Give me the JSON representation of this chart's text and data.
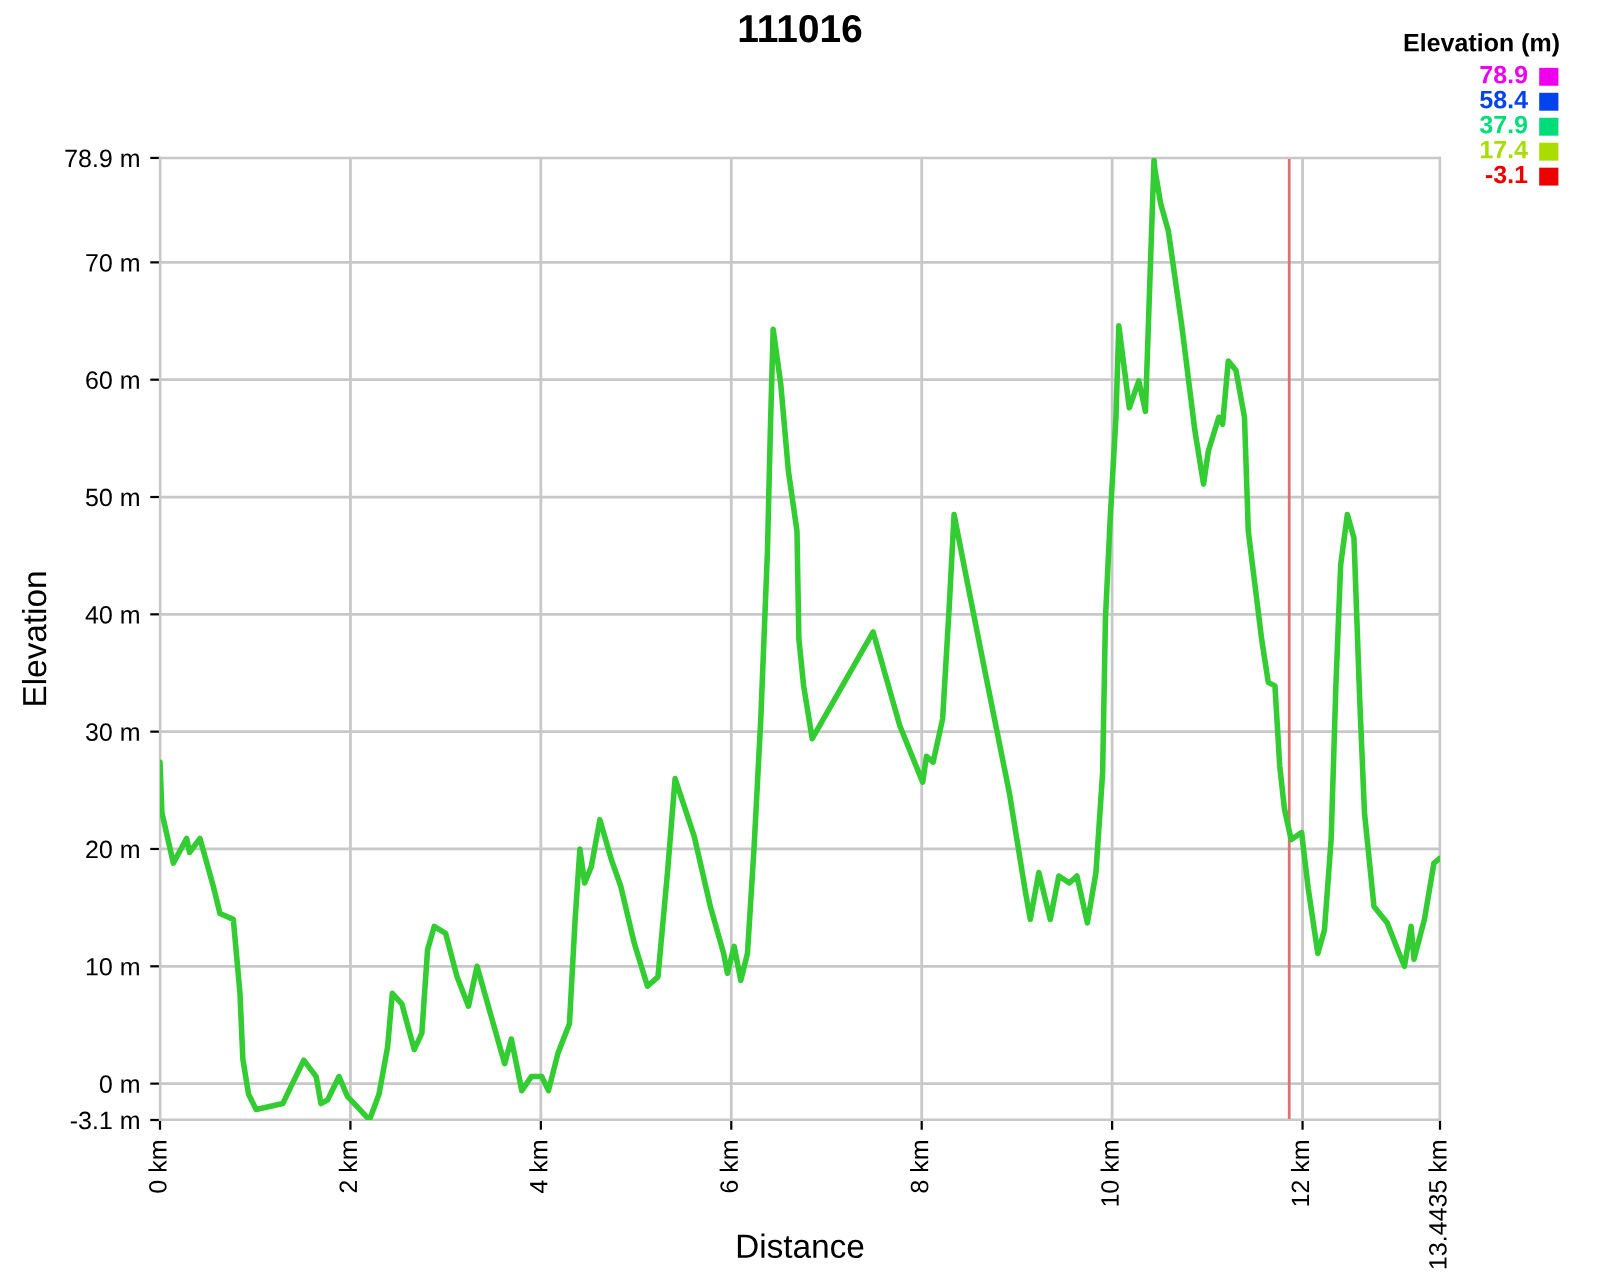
{
  "chart_data": {
    "type": "line",
    "title": "111016",
    "xlabel": "Distance",
    "ylabel": "Elevation",
    "clabel": "Elevation (m)",
    "clim": [
      -3.1,
      78.9
    ],
    "cticks": [
      78.9,
      58.4,
      37.9,
      17.4,
      -3.1
    ],
    "colors": [
      "#ee00ee",
      "#0044ee",
      "#00dd77",
      "#aadd00",
      "#ee0000"
    ],
    "xlim": [
      0,
      13.4435
    ],
    "xticks": [
      {
        "value": 0,
        "label": "0 km"
      },
      {
        "value": 2,
        "label": "2 km"
      },
      {
        "value": 4,
        "label": "4 km"
      },
      {
        "value": 6,
        "label": "6 km"
      },
      {
        "value": 8,
        "label": "8 km"
      },
      {
        "value": 10,
        "label": "10 km"
      },
      {
        "value": 12,
        "label": "12 km"
      },
      {
        "value": 13.4435,
        "label": "13.4435 km"
      }
    ],
    "ylim": [
      -3.1,
      78.9
    ],
    "yticks": [
      {
        "value": -3.1,
        "label": "-3.1 m"
      },
      {
        "value": 0,
        "label": "0 m"
      },
      {
        "value": 10,
        "label": "10 m"
      },
      {
        "value": 20,
        "label": "20 m"
      },
      {
        "value": 30,
        "label": "30 m"
      },
      {
        "value": 40,
        "label": "40 m"
      },
      {
        "value": 50,
        "label": "50 m"
      },
      {
        "value": 60,
        "label": "60 m"
      },
      {
        "value": 70,
        "label": "70 m"
      },
      {
        "value": 78.9,
        "label": "78.9 m"
      }
    ],
    "grid": true,
    "ref_lines": [
      {
        "axis": "x",
        "value": 11.86,
        "color": "#e07070"
      }
    ],
    "series": [
      {
        "color": "#33cc33",
        "x": [
          0,
          0.02,
          0.14,
          0.28,
          0.31,
          0.42,
          0.56,
          0.63,
          0.77,
          0.84,
          0.87,
          0.93,
          1.01,
          1.29,
          1.39,
          1.51,
          1.64,
          1.69,
          1.76,
          1.88,
          1.97,
          2.11,
          2.2,
          2.3,
          2.39,
          2.44,
          2.54,
          2.67,
          2.75,
          2.81,
          2.88,
          3.0,
          3.12,
          3.24,
          3.33,
          3.49,
          3.62,
          3.69,
          3.8,
          3.9,
          4.01,
          4.08,
          4.18,
          4.3,
          4.36,
          4.41,
          4.46,
          4.53,
          4.62,
          4.74,
          4.84,
          4.98,
          5.12,
          5.23,
          5.33,
          5.41,
          5.61,
          5.78,
          5.92,
          5.96,
          6.03,
          6.1,
          6.17,
          6.24,
          6.31,
          6.38,
          6.41,
          6.44,
          6.52,
          6.6,
          6.69,
          6.71,
          6.76,
          6.85,
          7.49,
          7.77,
          8.01,
          8.05,
          8.12,
          8.22,
          8.29,
          8.34,
          8.47,
          8.68,
          8.92,
          9.09,
          9.14,
          9.23,
          9.35,
          9.44,
          9.55,
          9.63,
          9.74,
          9.83,
          9.9,
          9.93,
          9.98,
          10.04,
          10.07,
          10.18,
          10.28,
          10.35,
          10.4,
          10.44,
          10.45,
          10.51,
          10.59,
          10.73,
          10.87,
          10.96,
          11.01,
          11.12,
          11.16,
          11.22,
          11.3,
          11.39,
          11.43,
          11.5,
          11.57,
          11.64,
          11.71,
          11.76,
          11.81,
          11.88,
          11.99,
          12.06,
          12.16,
          12.23,
          12.3,
          12.35,
          12.4,
          12.47,
          12.54,
          12.6,
          12.65,
          12.75,
          12.89,
          13.0,
          13.07,
          13.14,
          13.17,
          13.28,
          13.38,
          13.44
        ],
        "values": [
          27.4,
          23.1,
          18.8,
          20.9,
          19.7,
          20.9,
          16.8,
          14.5,
          14.0,
          7.7,
          2.1,
          -0.9,
          -2.2,
          -1.7,
          0,
          2.0,
          0.6,
          -1.7,
          -1.4,
          0.6,
          -1.1,
          -2.3,
          -3.1,
          -0.9,
          3.1,
          7.7,
          6.8,
          2.9,
          4.3,
          11.4,
          13.4,
          12.8,
          9.1,
          6.6,
          10.0,
          5.4,
          1.7,
          3.8,
          -0.6,
          0.6,
          0.6,
          -0.6,
          2.6,
          5.1,
          14.0,
          20.0,
          17.1,
          18.5,
          22.5,
          19.1,
          16.8,
          12.0,
          8.3,
          9.1,
          18.0,
          26.0,
          21.1,
          15.1,
          11.1,
          9.4,
          11.7,
          8.8,
          11.1,
          20.2,
          31.1,
          45.4,
          55.6,
          64.3,
          59.6,
          52.2,
          47.1,
          37.9,
          33.9,
          29.4,
          38.5,
          30.5,
          25.7,
          27.9,
          27.4,
          31.1,
          40.8,
          48.5,
          43.1,
          34.5,
          24.8,
          16.3,
          14.0,
          18.0,
          14.0,
          17.7,
          17.1,
          17.7,
          13.7,
          18.0,
          26.5,
          39.7,
          48.2,
          56.8,
          64.6,
          57.6,
          59.9,
          57.3,
          69.3,
          78.7,
          77.9,
          75.0,
          72.7,
          64.7,
          55.6,
          51.1,
          53.9,
          56.8,
          56.2,
          61.6,
          60.8,
          56.8,
          47.1,
          42.5,
          37.9,
          34.2,
          33.9,
          27.1,
          23.4,
          20.8,
          21.4,
          16.6,
          11.1,
          13.1,
          20.8,
          33.9,
          44.2,
          48.5,
          46.5,
          32.8,
          23.1,
          15.1,
          13.7,
          11.4,
          10.0,
          13.4,
          10.6,
          14.0,
          18.8,
          19.2
        ]
      }
    ]
  }
}
